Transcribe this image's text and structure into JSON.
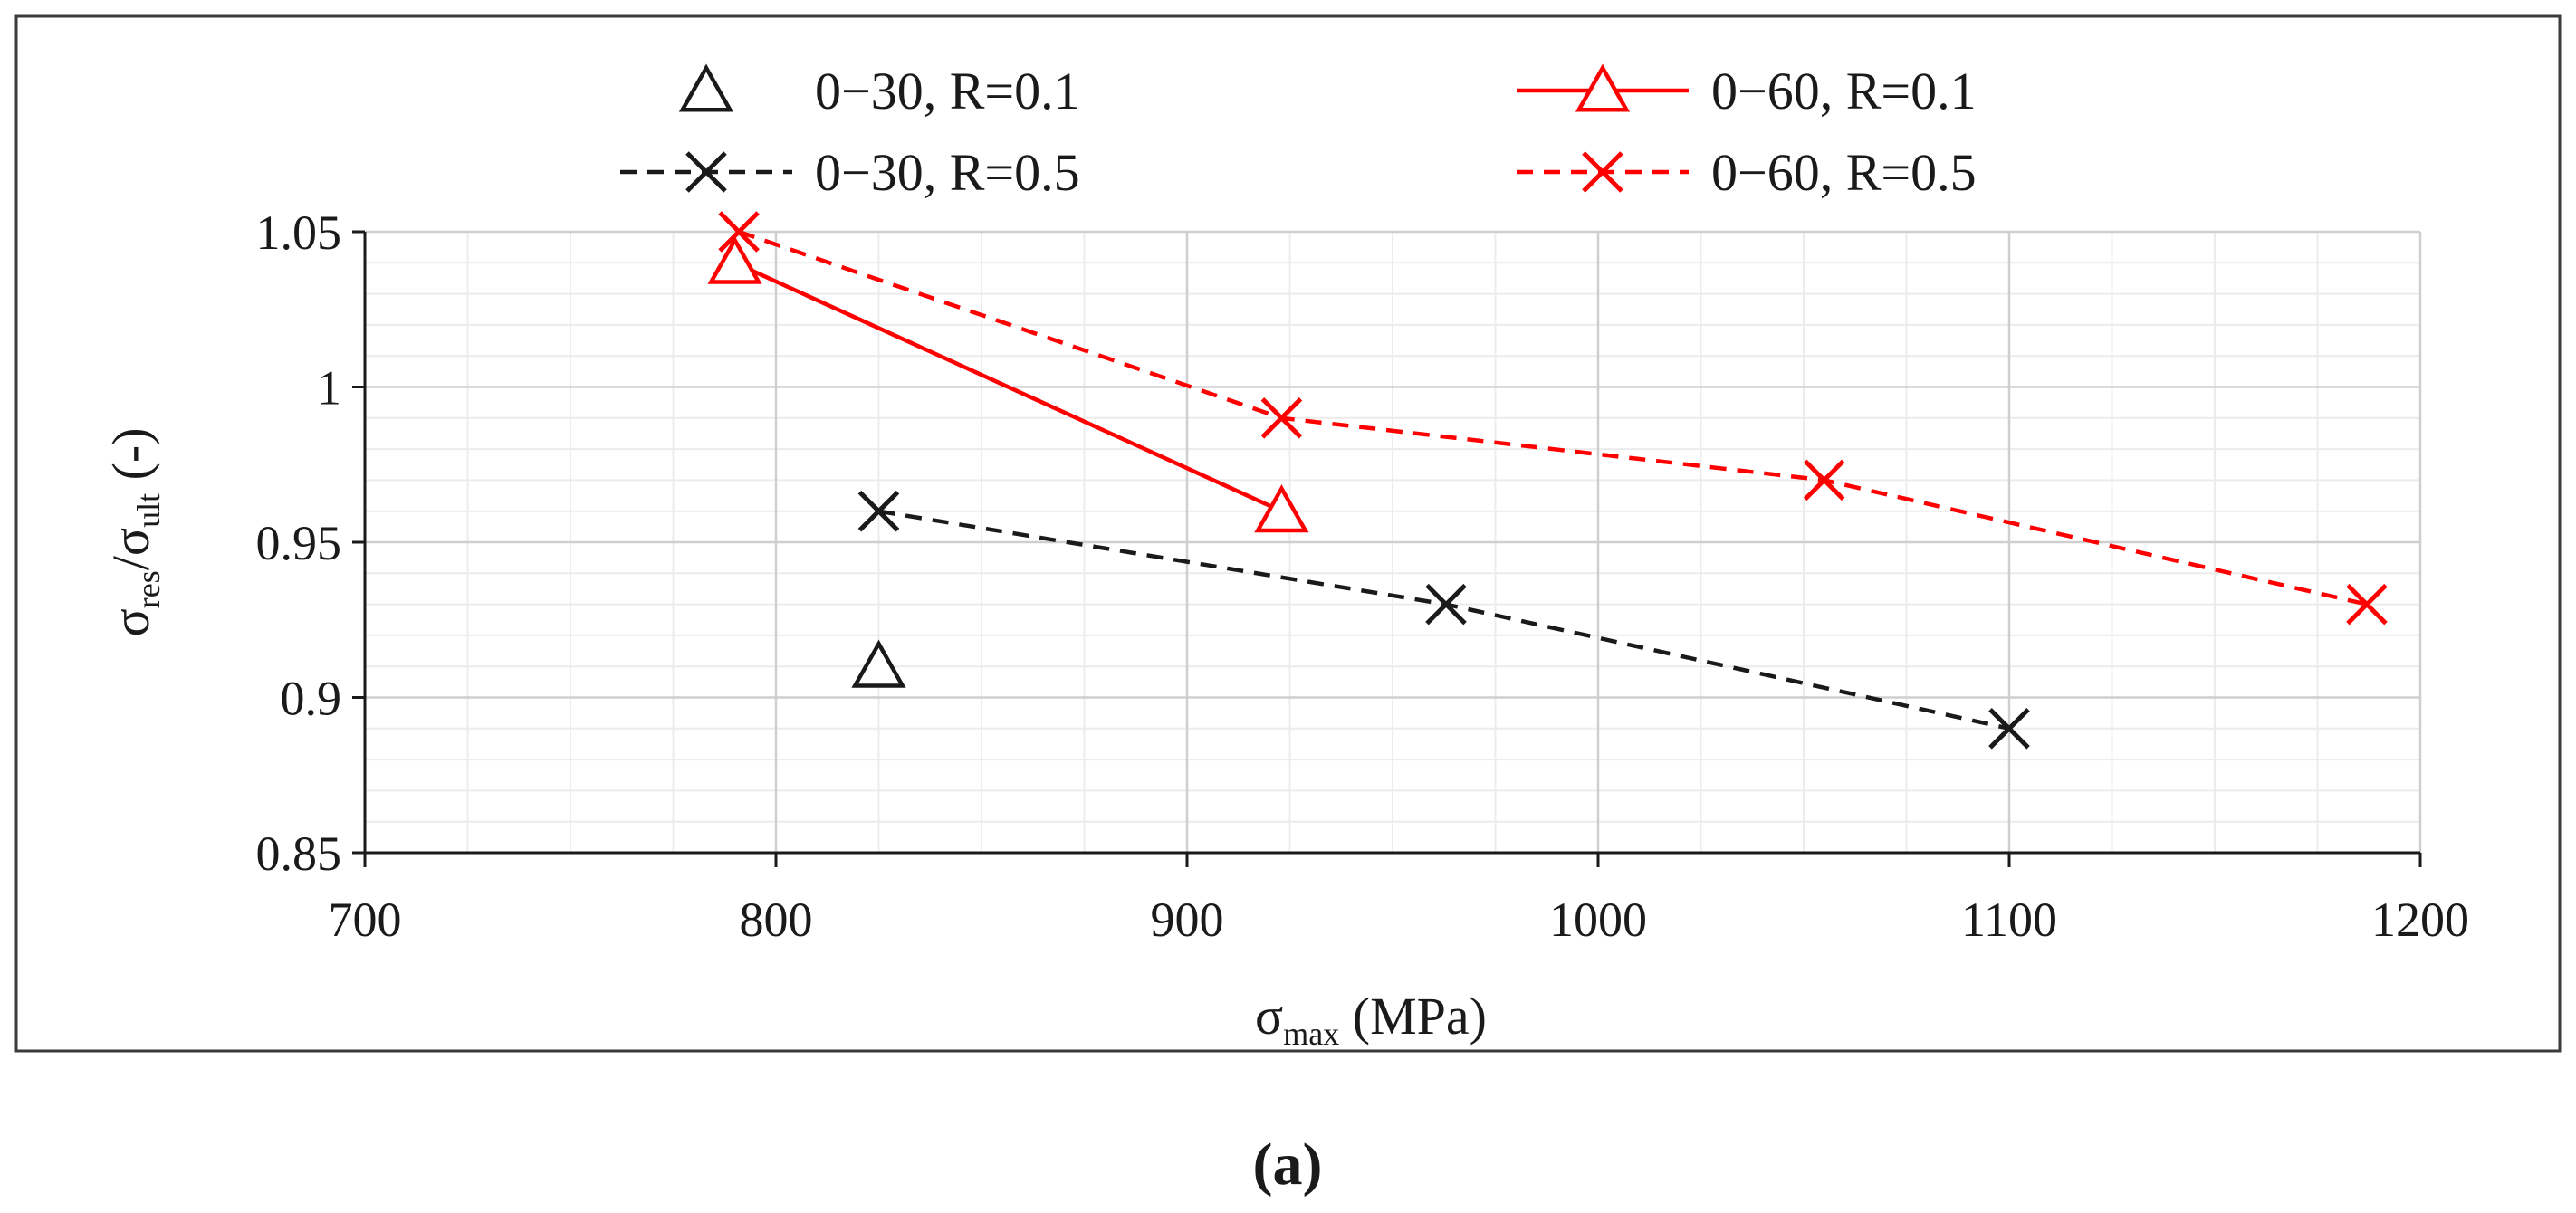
{
  "chart_data": {
    "type": "line",
    "xlabel": {
      "symbol": "σ",
      "subscript": "max",
      "unit": " (MPa)"
    },
    "ylabel": {
      "symbol1": "σ",
      "sub1": "res",
      "slash": "/",
      "symbol2": "σ",
      "sub2": "ult",
      "unit": " (-)"
    },
    "xlim": [
      700,
      1200
    ],
    "ylim": [
      0.85,
      1.05
    ],
    "x_ticks": [
      700,
      800,
      900,
      1000,
      1100,
      1200
    ],
    "x_tick_labels": [
      "700",
      "800",
      "900",
      "1000",
      "1100",
      "1200"
    ],
    "y_ticks": [
      0.85,
      0.9,
      0.95,
      1.0,
      1.05
    ],
    "y_tick_labels": [
      "0.85",
      "0.9",
      "0.95",
      "1",
      "1.05"
    ],
    "x_minor_step": 25,
    "y_minor_step": 0.01,
    "grid": true,
    "legend_position": "top",
    "series": [
      {
        "name": "0−30, R=0.1",
        "color": "#1a1a1a",
        "marker": "triangle",
        "line": "none",
        "points": [
          {
            "x": 825,
            "y": 0.91
          }
        ]
      },
      {
        "name": "0−60, R=0.1",
        "color": "#ff0000",
        "marker": "triangle",
        "line": "solid",
        "points": [
          {
            "x": 790,
            "y": 1.04
          },
          {
            "x": 923,
            "y": 0.96
          }
        ]
      },
      {
        "name": "0−30, R=0.5",
        "color": "#1a1a1a",
        "marker": "x",
        "line": "dashed",
        "points": [
          {
            "x": 825,
            "y": 0.96
          },
          {
            "x": 963,
            "y": 0.93
          },
          {
            "x": 1100,
            "y": 0.89
          }
        ]
      },
      {
        "name": "0−60, R=0.5",
        "color": "#ff0000",
        "marker": "x",
        "line": "dashed",
        "points": [
          {
            "x": 791,
            "y": 1.05
          },
          {
            "x": 923,
            "y": 0.99
          },
          {
            "x": 1055,
            "y": 0.97
          },
          {
            "x": 1187,
            "y": 0.93
          }
        ]
      }
    ]
  },
  "caption": "(a)"
}
